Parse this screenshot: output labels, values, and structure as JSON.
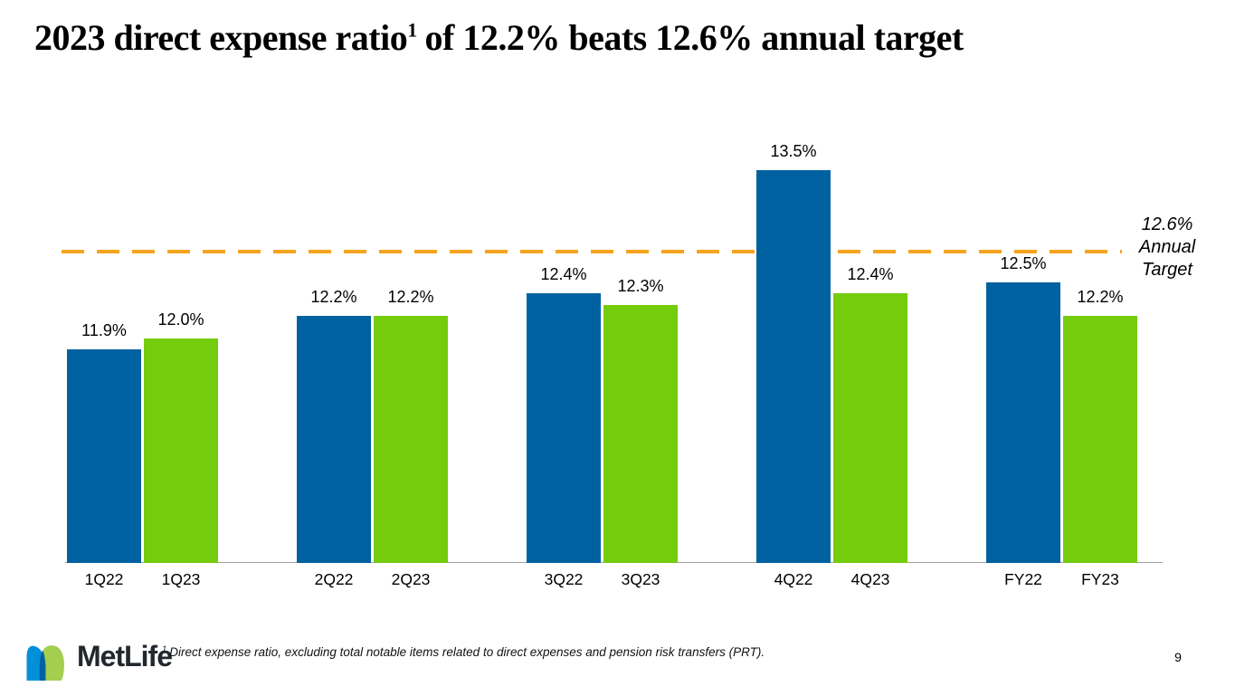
{
  "slide": {
    "title": {
      "part1": "2023 direct expense ratio",
      "sup": "1",
      "part2": "of 12.2% beats 12.6% annual target"
    },
    "footnote": {
      "sup": "1",
      "text": "Direct expense ratio, excluding total notable items related to direct expenses and pension risk transfers (PRT)."
    },
    "logo": {
      "wordmark": "MetLife"
    },
    "page_number": "9"
  },
  "colors": {
    "bar_2022_blue": "#0061A0",
    "bar_2023_green": "#74CC0C",
    "target_line_orange": "#F5A41F",
    "axis_gray": "#A1A1A1",
    "logo_light_blue": "#0090DA",
    "logo_overlap_blue": "#0061A0",
    "logo_green": "#A4CE4E",
    "wordmark_dark": "#23282e"
  },
  "chart_data": {
    "type": "bar",
    "title": "2023 direct expense ratio(1) of 12.2% beats 12.6% annual target",
    "categories": [
      "1Q22",
      "1Q23",
      "2Q22",
      "2Q23",
      "3Q22",
      "3Q23",
      "4Q22",
      "4Q23",
      "FY22",
      "FY23"
    ],
    "group_categories": [
      "1Q",
      "2Q",
      "3Q",
      "4Q",
      "FY"
    ],
    "series": [
      {
        "name": "2022",
        "color": "#0061A0",
        "values": [
          11.9,
          12.2,
          12.4,
          13.5,
          12.5
        ],
        "labels": [
          "11.9%",
          "12.2%",
          "12.4%",
          "13.5%",
          "12.5%"
        ]
      },
      {
        "name": "2023",
        "color": "#74CC0C",
        "values": [
          12.0,
          12.2,
          12.3,
          12.4,
          12.2
        ],
        "labels": [
          "12.0%",
          "12.2%",
          "12.3%",
          "12.4%",
          "12.2%"
        ]
      }
    ],
    "target": {
      "value": 12.6,
      "label_lines": [
        "12.6%",
        "Annual",
        "Target"
      ],
      "line_color": "#F5A41F",
      "line_style": "dashed"
    },
    "ylabel": "",
    "xlabel": "",
    "ylim": [
      10,
      14
    ],
    "y_axis_visible": false,
    "gridlines": false,
    "legend_position": "none",
    "data_labels": true
  }
}
